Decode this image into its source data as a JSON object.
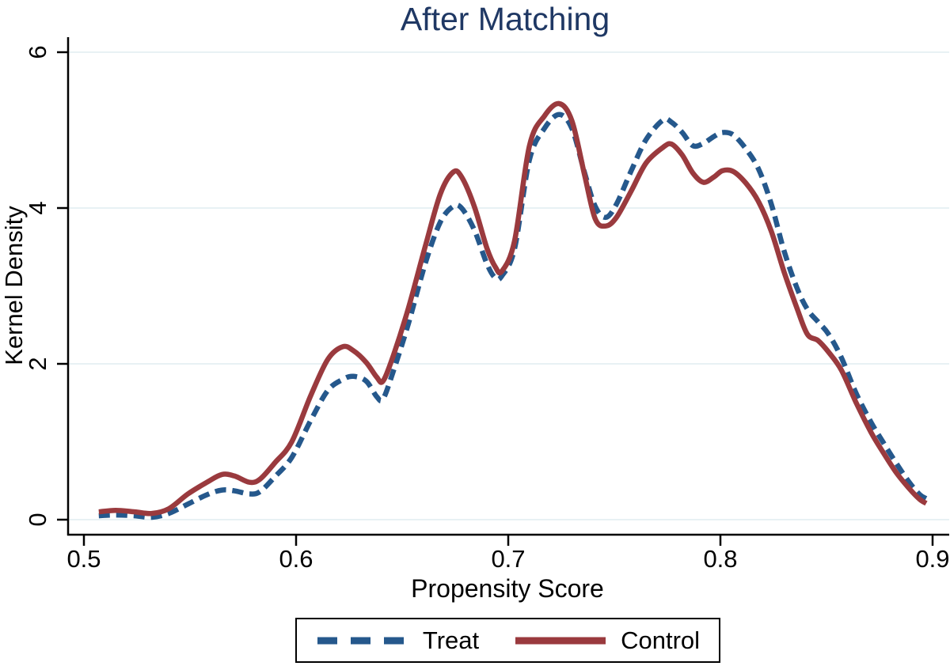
{
  "title": "After Matching",
  "colors": {
    "title": "#1f3864",
    "treat": "#25588c",
    "control": "#9a3a3e",
    "gridline": "#e8f1f4",
    "axis": "#000000"
  },
  "axes": {
    "x_title": "Propensity Score",
    "y_title": "Kernel Density",
    "x_tick_labels": [
      "0.5",
      "0.6",
      "0.7",
      "0.8",
      "0.9"
    ],
    "y_tick_labels": [
      "0",
      "2",
      "4",
      "6"
    ]
  },
  "chart_data": {
    "type": "line",
    "title": "After Matching",
    "xlabel": "Propensity Score",
    "ylabel": "Kernel Density",
    "xlim": [
      0.492,
      0.908
    ],
    "ylim": [
      0,
      6
    ],
    "x_ticks": [
      0.5,
      0.6,
      0.7,
      0.8,
      0.9
    ],
    "y_ticks": [
      0,
      2,
      4,
      6
    ],
    "grid": true,
    "legend_position": "bottom-center",
    "x": [
      0.507,
      0.515,
      0.524,
      0.532,
      0.54,
      0.549,
      0.558,
      0.565,
      0.571,
      0.578,
      0.583,
      0.59,
      0.598,
      0.607,
      0.615,
      0.622,
      0.627,
      0.633,
      0.638,
      0.641,
      0.646,
      0.653,
      0.661,
      0.668,
      0.674,
      0.678,
      0.684,
      0.69,
      0.694,
      0.697,
      0.703,
      0.71,
      0.717,
      0.724,
      0.73,
      0.736,
      0.741,
      0.746,
      0.751,
      0.758,
      0.765,
      0.773,
      0.777,
      0.782,
      0.787,
      0.792,
      0.797,
      0.801,
      0.806,
      0.812,
      0.818,
      0.824,
      0.83,
      0.836,
      0.841,
      0.846,
      0.851,
      0.857,
      0.864,
      0.871,
      0.877,
      0.883,
      0.889,
      0.894,
      0.897
    ],
    "series": [
      {
        "name": "Treat",
        "style": "dashed",
        "color": "#25588c",
        "values": [
          0.05,
          0.06,
          0.05,
          0.03,
          0.08,
          0.2,
          0.32,
          0.38,
          0.37,
          0.33,
          0.36,
          0.55,
          0.8,
          1.28,
          1.66,
          1.8,
          1.84,
          1.78,
          1.58,
          1.55,
          1.92,
          2.52,
          3.3,
          3.82,
          4.02,
          4.0,
          3.72,
          3.28,
          3.1,
          3.13,
          3.48,
          4.62,
          5.02,
          5.2,
          5.02,
          4.45,
          4.02,
          3.88,
          4.05,
          4.48,
          4.88,
          5.13,
          5.1,
          4.97,
          4.8,
          4.83,
          4.92,
          4.97,
          4.94,
          4.76,
          4.5,
          4.05,
          3.45,
          2.98,
          2.7,
          2.54,
          2.38,
          2.08,
          1.62,
          1.25,
          0.98,
          0.72,
          0.48,
          0.32,
          0.27
        ]
      },
      {
        "name": "Control",
        "style": "solid",
        "color": "#9a3a3e",
        "values": [
          0.1,
          0.12,
          0.1,
          0.08,
          0.14,
          0.33,
          0.48,
          0.58,
          0.56,
          0.48,
          0.52,
          0.73,
          1.0,
          1.6,
          2.06,
          2.22,
          2.17,
          2.02,
          1.83,
          1.78,
          2.12,
          2.72,
          3.52,
          4.18,
          4.46,
          4.4,
          4.02,
          3.48,
          3.24,
          3.19,
          3.58,
          4.8,
          5.18,
          5.34,
          5.12,
          4.42,
          3.86,
          3.77,
          3.88,
          4.22,
          4.58,
          4.78,
          4.82,
          4.68,
          4.45,
          4.33,
          4.4,
          4.48,
          4.47,
          4.32,
          4.08,
          3.7,
          3.18,
          2.72,
          2.38,
          2.3,
          2.15,
          1.92,
          1.5,
          1.12,
          0.85,
          0.6,
          0.4,
          0.26,
          0.21
        ]
      }
    ]
  },
  "legend": {
    "treat_label": "Treat",
    "control_label": "Control"
  }
}
